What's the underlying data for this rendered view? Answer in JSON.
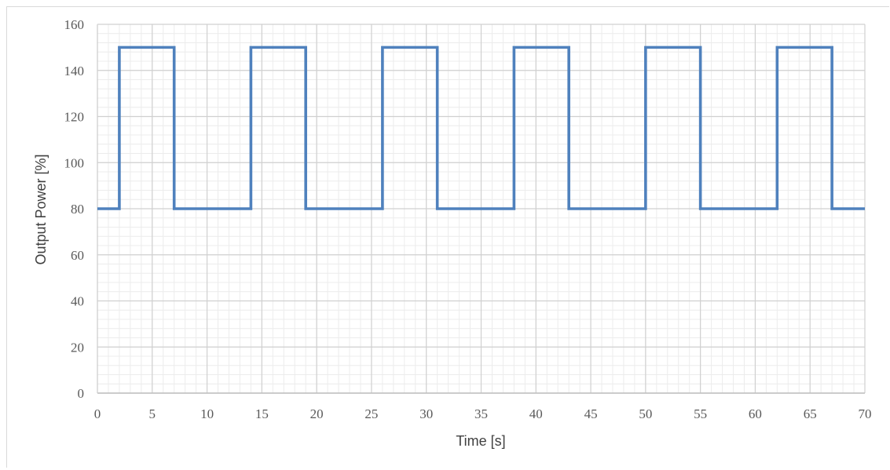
{
  "chart_data": {
    "type": "line",
    "title": "",
    "xlabel": "Time [s]",
    "ylabel": "Output Power [%]",
    "xlim": [
      0,
      70
    ],
    "ylim": [
      0,
      160
    ],
    "x_ticks": [
      0,
      5,
      10,
      15,
      20,
      25,
      30,
      35,
      40,
      45,
      50,
      55,
      60,
      65,
      70
    ],
    "y_ticks": [
      0,
      20,
      40,
      60,
      80,
      100,
      120,
      140,
      160
    ],
    "grid": true,
    "minor_grid": true,
    "legend": "none",
    "line_color": "#4f81bd",
    "series": [
      {
        "x": [
          0,
          2,
          2,
          7,
          7,
          14,
          14,
          19,
          19,
          26,
          26,
          31,
          31,
          38,
          38,
          43,
          43,
          50,
          50,
          55,
          55,
          62,
          62,
          67,
          67,
          70
        ],
        "y": [
          80,
          80,
          150,
          150,
          80,
          80,
          150,
          150,
          80,
          80,
          150,
          150,
          80,
          80,
          150,
          150,
          80,
          80,
          150,
          150,
          80,
          80,
          150,
          150,
          80,
          80
        ]
      }
    ]
  }
}
